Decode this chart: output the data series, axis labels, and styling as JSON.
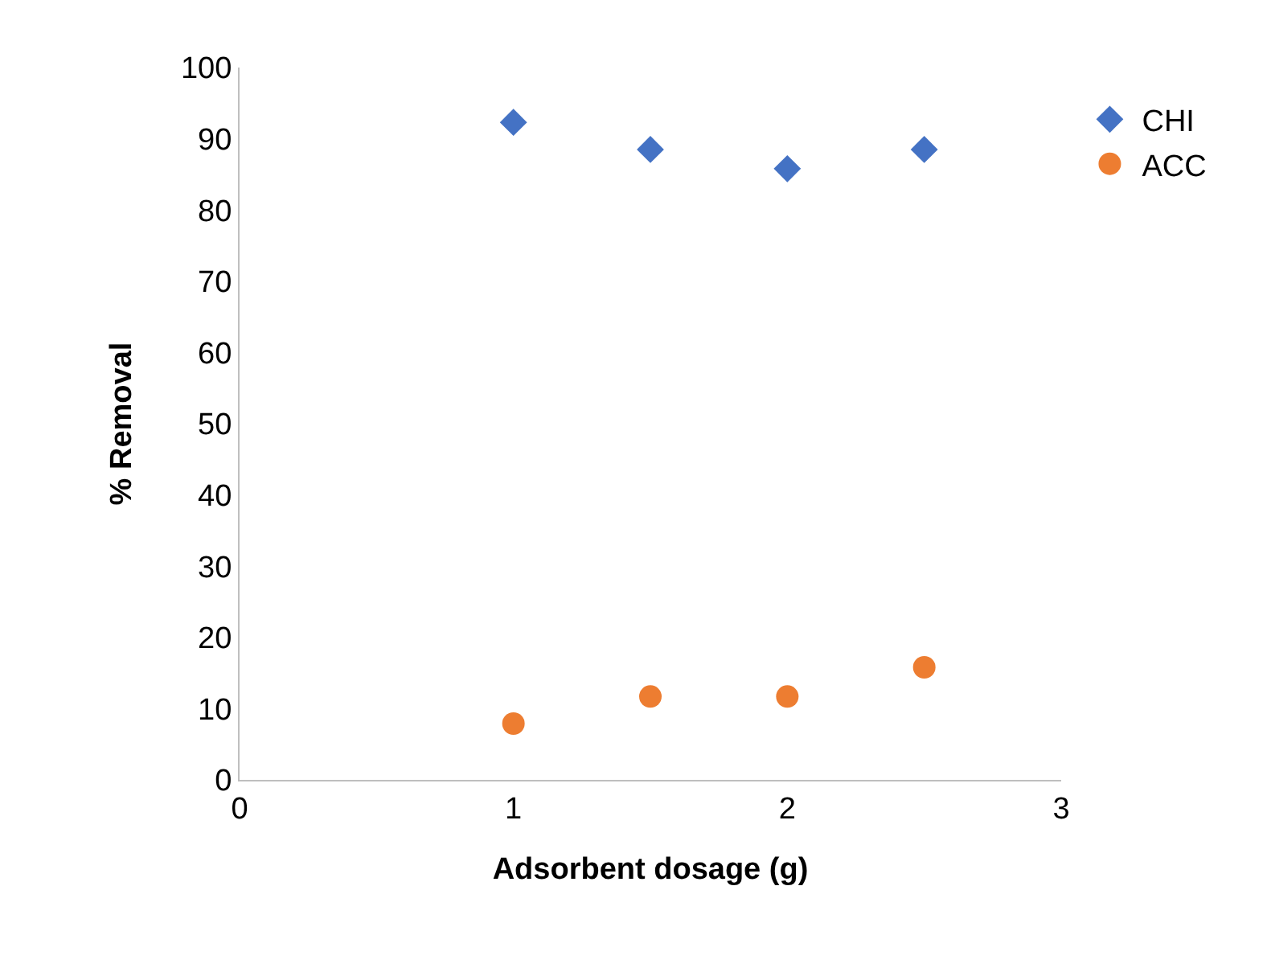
{
  "chart_data": {
    "type": "scatter",
    "xlabel": "Adsorbent dosage (g)",
    "ylabel": "% Removal",
    "x": [
      1,
      1.5,
      2,
      2.5
    ],
    "series": [
      {
        "name": "CHI",
        "color": "#4472c4",
        "marker": "diamond",
        "values": [
          92.3,
          88.5,
          85.8,
          88.5
        ]
      },
      {
        "name": "ACC",
        "color": "#ed7d31",
        "marker": "circle",
        "values": [
          7.9,
          11.7,
          11.7,
          15.8
        ]
      }
    ],
    "xlim": [
      0,
      3
    ],
    "xticks": [
      0,
      1,
      2,
      3
    ],
    "ylim": [
      0,
      100
    ],
    "yticks": [
      0,
      10,
      20,
      30,
      40,
      50,
      60,
      70,
      80,
      90,
      100
    ],
    "grid": false,
    "legend": "top right"
  }
}
